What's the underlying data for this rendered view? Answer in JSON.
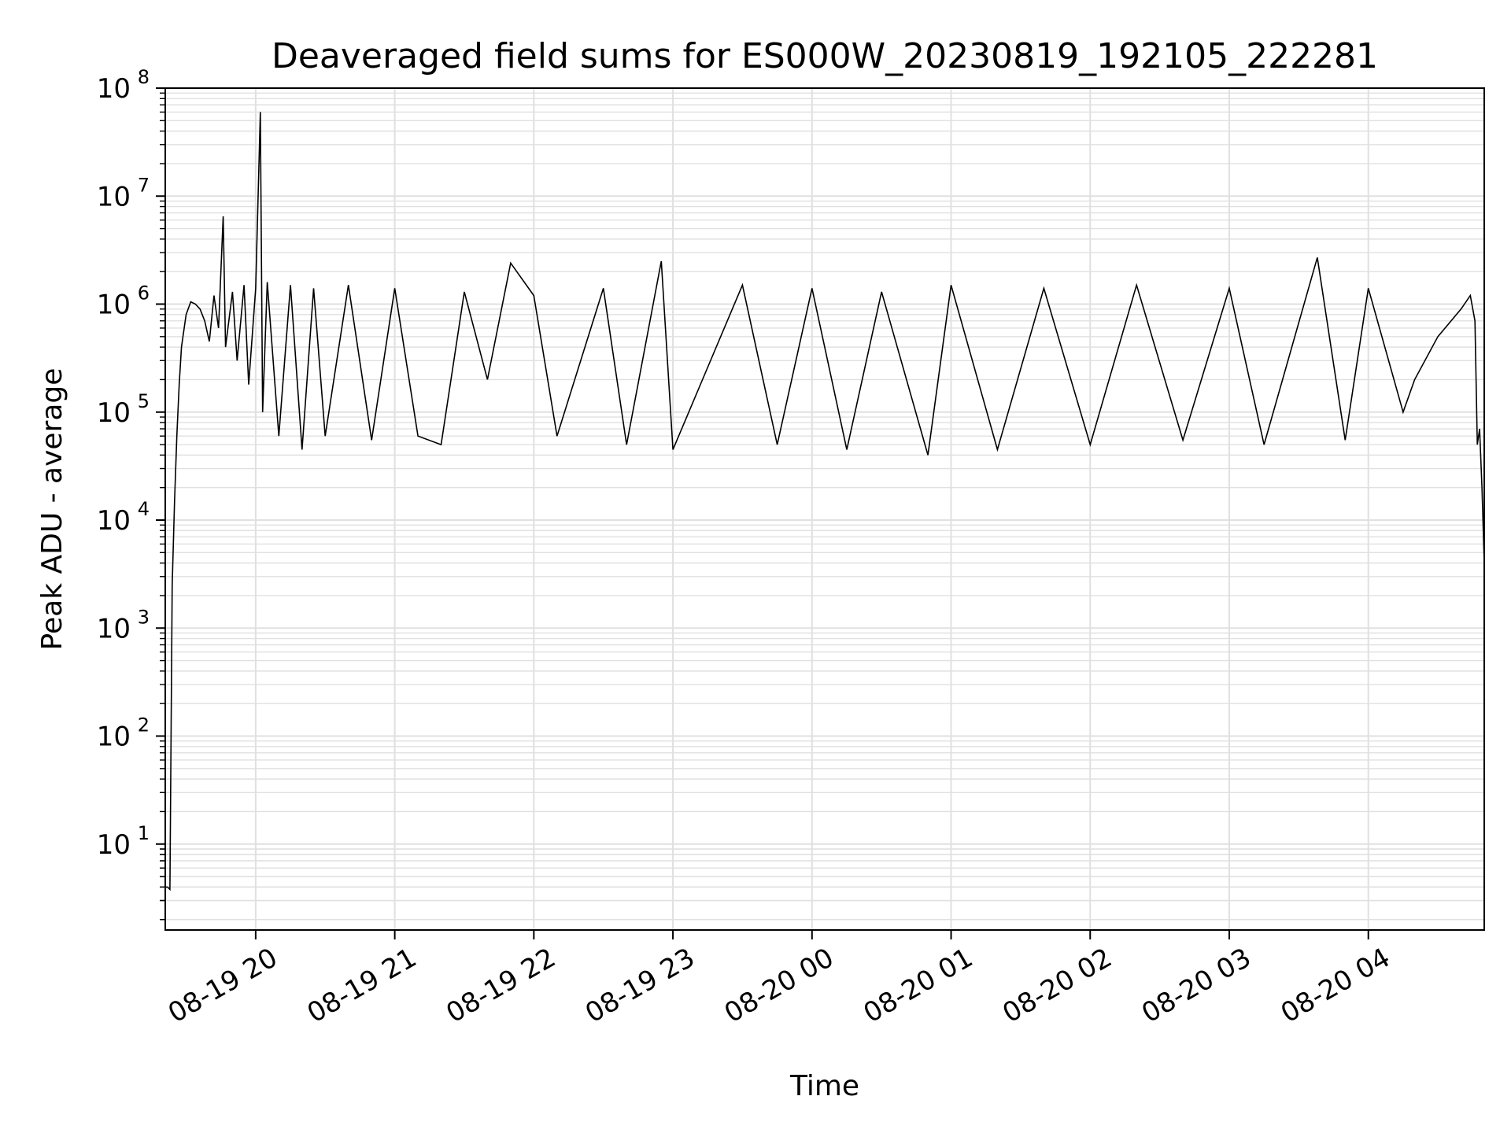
{
  "chart_data": {
    "type": "line",
    "title": "Deaveraged field sums for ES000W_20230819_192105_222281",
    "xlabel": "Time",
    "ylabel": "Peak ADU - average",
    "yscale": "log",
    "ylim": [
      1.6,
      100000000
    ],
    "xlim": [
      "2023-08-19 19:21",
      "2023-08-20 04:50"
    ],
    "grid": true,
    "colors": {
      "line": "#000000",
      "grid": "#e0e0e0",
      "axes": "#000000"
    },
    "x_ticks": [
      {
        "time": "2023-08-19 20:00",
        "label": "08-19 20"
      },
      {
        "time": "2023-08-19 21:00",
        "label": "08-19 21"
      },
      {
        "time": "2023-08-19 22:00",
        "label": "08-19 22"
      },
      {
        "time": "2023-08-19 23:00",
        "label": "08-19 23"
      },
      {
        "time": "2023-08-20 00:00",
        "label": "08-20 00"
      },
      {
        "time": "2023-08-20 01:00",
        "label": "08-20 01"
      },
      {
        "time": "2023-08-20 02:00",
        "label": "08-20 02"
      },
      {
        "time": "2023-08-20 03:00",
        "label": "08-20 03"
      },
      {
        "time": "2023-08-20 04:00",
        "label": "08-20 04"
      }
    ],
    "y_ticks": [
      {
        "value": 10,
        "base": "10",
        "exp": "1"
      },
      {
        "value": 100,
        "base": "10",
        "exp": "2"
      },
      {
        "value": 1000,
        "base": "10",
        "exp": "3"
      },
      {
        "value": 10000,
        "base": "10",
        "exp": "4"
      },
      {
        "value": 100000,
        "base": "10",
        "exp": "5"
      },
      {
        "value": 1000000,
        "base": "10",
        "exp": "6"
      },
      {
        "value": 10000000,
        "base": "10",
        "exp": "7"
      },
      {
        "value": 100000000,
        "base": "10",
        "exp": "8"
      }
    ],
    "series": [
      {
        "points": [
          [
            "2023-08-19 19:21",
            4
          ],
          [
            "2023-08-19 19:22",
            4
          ],
          [
            "2023-08-19 19:23",
            3.8
          ],
          [
            "2023-08-19 19:24",
            2500
          ],
          [
            "2023-08-19 19:25",
            15000
          ],
          [
            "2023-08-19 19:26",
            60000
          ],
          [
            "2023-08-19 19:27",
            180000
          ],
          [
            "2023-08-19 19:28",
            400000
          ],
          [
            "2023-08-19 19:30",
            800000
          ],
          [
            "2023-08-19 19:32",
            1050000
          ],
          [
            "2023-08-19 19:34",
            1000000
          ],
          [
            "2023-08-19 19:36",
            900000
          ],
          [
            "2023-08-19 19:38",
            700000
          ],
          [
            "2023-08-19 19:40",
            450000
          ],
          [
            "2023-08-19 19:42",
            1200000
          ],
          [
            "2023-08-19 19:44",
            600000
          ],
          [
            "2023-08-19 19:46",
            6500000
          ],
          [
            "2023-08-19 19:47",
            400000
          ],
          [
            "2023-08-19 19:50",
            1300000
          ],
          [
            "2023-08-19 19:52",
            300000
          ],
          [
            "2023-08-19 19:55",
            1500000
          ],
          [
            "2023-08-19 19:57",
            180000
          ],
          [
            "2023-08-19 20:00",
            1400000
          ],
          [
            "2023-08-19 20:02",
            60000000
          ],
          [
            "2023-08-19 20:03",
            100000
          ],
          [
            "2023-08-19 20:05",
            1600000
          ],
          [
            "2023-08-19 20:10",
            60000
          ],
          [
            "2023-08-19 20:15",
            1500000
          ],
          [
            "2023-08-19 20:20",
            45000
          ],
          [
            "2023-08-19 20:25",
            1400000
          ],
          [
            "2023-08-19 20:30",
            60000
          ],
          [
            "2023-08-19 20:40",
            1500000
          ],
          [
            "2023-08-19 20:50",
            55000
          ],
          [
            "2023-08-19 21:00",
            1400000
          ],
          [
            "2023-08-19 21:10",
            60000
          ],
          [
            "2023-08-19 21:20",
            50000
          ],
          [
            "2023-08-19 21:30",
            1300000
          ],
          [
            "2023-08-19 21:40",
            200000
          ],
          [
            "2023-08-19 21:50",
            2400000
          ],
          [
            "2023-08-19 22:00",
            1200000
          ],
          [
            "2023-08-19 22:10",
            60000
          ],
          [
            "2023-08-19 22:30",
            1400000
          ],
          [
            "2023-08-19 22:40",
            50000
          ],
          [
            "2023-08-19 22:55",
            2500000
          ],
          [
            "2023-08-19 23:00",
            45000
          ],
          [
            "2023-08-19 23:30",
            1500000
          ],
          [
            "2023-08-19 23:45",
            50000
          ],
          [
            "2023-08-20 00:00",
            1400000
          ],
          [
            "2023-08-20 00:15",
            45000
          ],
          [
            "2023-08-20 00:30",
            1300000
          ],
          [
            "2023-08-20 00:50",
            40000
          ],
          [
            "2023-08-20 01:00",
            1500000
          ],
          [
            "2023-08-20 01:20",
            45000
          ],
          [
            "2023-08-20 01:40",
            1400000
          ],
          [
            "2023-08-20 02:00",
            50000
          ],
          [
            "2023-08-20 02:20",
            1500000
          ],
          [
            "2023-08-20 02:40",
            55000
          ],
          [
            "2023-08-20 03:00",
            1400000
          ],
          [
            "2023-08-20 03:15",
            50000
          ],
          [
            "2023-08-20 03:38",
            2700000
          ],
          [
            "2023-08-20 03:50",
            55000
          ],
          [
            "2023-08-20 04:00",
            1400000
          ],
          [
            "2023-08-20 04:15",
            100000
          ],
          [
            "2023-08-20 04:20",
            200000
          ],
          [
            "2023-08-20 04:30",
            500000
          ],
          [
            "2023-08-20 04:40",
            900000
          ],
          [
            "2023-08-20 04:44",
            1200000
          ],
          [
            "2023-08-20 04:46",
            700000
          ],
          [
            "2023-08-20 04:47",
            50000
          ],
          [
            "2023-08-20 04:48",
            70000
          ],
          [
            "2023-08-20 04:49",
            20000
          ],
          [
            "2023-08-20 04:50",
            4000
          ]
        ]
      }
    ]
  }
}
